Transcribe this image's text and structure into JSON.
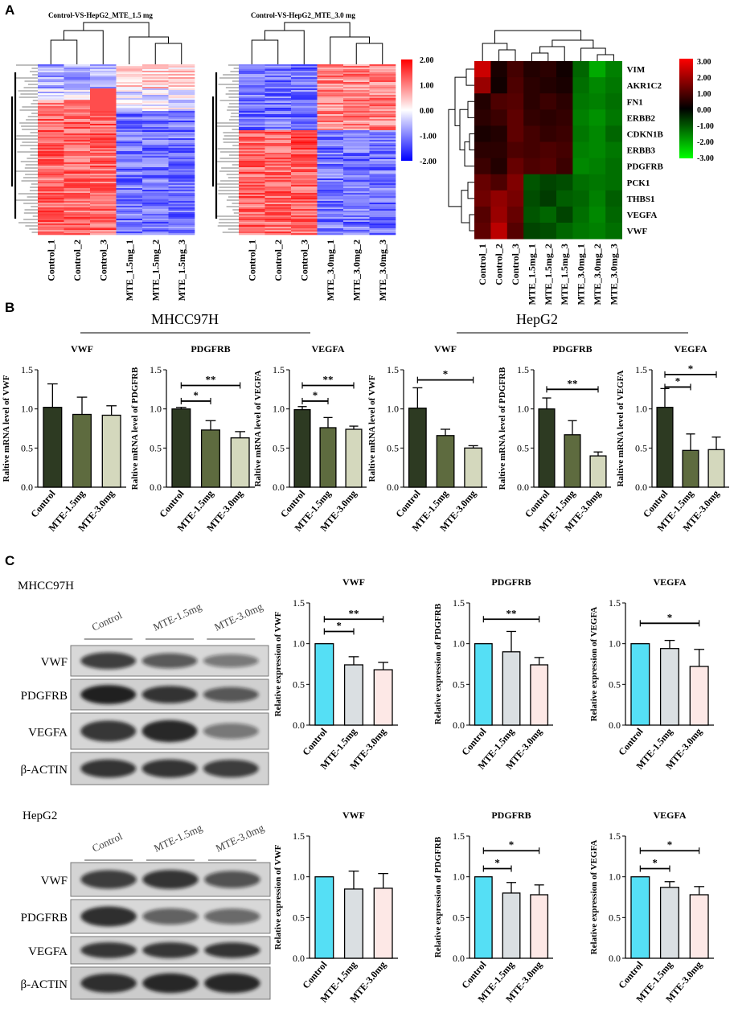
{
  "panels": {
    "a": "A",
    "b": "B",
    "c": "C"
  },
  "heatmaps": [
    {
      "title": "Control-VS-HepG2_MTE_1.5 mg",
      "columns": [
        "Control_1",
        "Control_2",
        "Control_3",
        "MTE_1.5mg_1",
        "MTE_1.5mg_2",
        "MTE_1.5mg_3"
      ]
    },
    {
      "title": "Control-VS-HepG2_MTE_3.0 mg",
      "columns": [
        "Control_1",
        "Control_2",
        "Control_3",
        "MTE_3.0mg_1",
        "MTE_3.0mg_2",
        "MTE_3.0mg_3"
      ]
    }
  ],
  "colorbar1": {
    "ticks": [
      "2.00",
      "1.00",
      "0.00",
      "-1.00",
      "-2.00"
    ],
    "colors": {
      "high": "#ff0000",
      "mid": "#ffffff",
      "low": "#0000ff"
    }
  },
  "gene_heatmap": {
    "genes": [
      "VIM",
      "AKR1C2",
      "FN1",
      "ERBB2",
      "CDKN1B",
      "ERBB3",
      "PDGFRB",
      "PCK1",
      "THBS1",
      "VEGFA",
      "VWF"
    ],
    "columns": [
      "Control_1",
      "Control_2",
      "Control_3",
      "MTE_1.5mg_1",
      "MTE_1.5mg_2",
      "MTE_1.5mg_3",
      "MTE_3.0mg_1",
      "MTE_3.0mg_2",
      "MTE_3.0mg_3"
    ],
    "values": [
      [
        2.4,
        0.3,
        0.8,
        0.4,
        0.5,
        0.2,
        -1.2,
        -2.0,
        -1.5
      ],
      [
        1.8,
        0.2,
        0.9,
        0.5,
        0.4,
        0.3,
        -1.3,
        -1.6,
        -1.4
      ],
      [
        0.4,
        0.9,
        1.0,
        0.5,
        0.7,
        0.5,
        -1.4,
        -1.5,
        -1.3
      ],
      [
        0.5,
        0.7,
        1.1,
        0.6,
        0.5,
        0.6,
        -1.5,
        -1.7,
        -1.4
      ],
      [
        0.3,
        0.4,
        1.1,
        0.8,
        0.6,
        0.7,
        -1.4,
        -1.6,
        -1.2
      ],
      [
        0.5,
        0.5,
        0.9,
        0.8,
        0.9,
        0.8,
        -1.5,
        -1.6,
        -1.4
      ],
      [
        0.7,
        0.4,
        1.2,
        0.9,
        1.0,
        0.7,
        -1.6,
        -1.5,
        -1.3
      ],
      [
        1.2,
        0.9,
        1.5,
        -1.0,
        -0.8,
        -0.9,
        -1.3,
        -1.4,
        -1.3
      ],
      [
        1.3,
        1.7,
        1.4,
        -0.9,
        -0.7,
        -1.1,
        -1.2,
        -1.5,
        -1.1
      ],
      [
        1.0,
        1.8,
        1.2,
        -1.0,
        -1.2,
        -0.8,
        -1.3,
        -1.6,
        -1.2
      ],
      [
        1.1,
        2.2,
        1.0,
        -0.8,
        -0.9,
        -1.2,
        -1.4,
        -1.5,
        -1.3
      ]
    ]
  },
  "colorbar2": {
    "ticks": [
      "3.00",
      "2.00",
      "1.00",
      "0.00",
      "-1.00",
      "-2.00",
      "-3.00"
    ],
    "colors": {
      "high": "#ff0000",
      "mid": "#000000",
      "low": "#00ff00"
    }
  },
  "section_b": {
    "group1": "MHCC97H",
    "group2": "HepG2"
  },
  "section_c": {
    "blots": [
      {
        "cell": "MHCC97H",
        "lanes": [
          "Control",
          "MTE-1.5mg",
          "MTE-3.0mg"
        ],
        "proteins": [
          "VWF",
          "PDGFRB",
          "VEGFA",
          "β-ACTIN"
        ]
      },
      {
        "cell": "HepG2",
        "lanes": [
          "Control",
          "MTE-1.5mg",
          "MTE-3.0mg"
        ],
        "proteins": [
          "VWF",
          "PDGFRB",
          "VEGFA",
          "β-ACTIN"
        ]
      }
    ]
  },
  "chart_data": [
    {
      "type": "bar",
      "panel": "B",
      "cell": "MHCC97H",
      "title": "VWF",
      "ylabel": "Raltive mRNA level of VWF",
      "categories": [
        "Control",
        "MTE-1.5mg",
        "MTE-3.0mg"
      ],
      "values": [
        1.02,
        0.93,
        0.92
      ],
      "errors": [
        0.3,
        0.22,
        0.12
      ],
      "ylim": [
        0,
        1.5
      ],
      "yticks": [
        "0.0",
        "0.5",
        "1.0",
        "1.5"
      ],
      "sig": [],
      "colors": [
        "#2d3a22",
        "#5e6b3f",
        "#d4d8bd"
      ]
    },
    {
      "type": "bar",
      "panel": "B",
      "cell": "MHCC97H",
      "title": "PDGFRB",
      "ylabel": "Raltive mRNA level of PDGFRB",
      "categories": [
        "Control",
        "MTE-1.5mg",
        "MTE-3.0mg"
      ],
      "values": [
        1.0,
        0.73,
        0.63
      ],
      "errors": [
        0.02,
        0.12,
        0.08
      ],
      "ylim": [
        0,
        1.5
      ],
      "yticks": [
        "0.0",
        "0.5",
        "1.0",
        "1.5"
      ],
      "sig": [
        {
          "from": 0,
          "to": 1,
          "label": "*",
          "at": 1.1
        },
        {
          "from": 0,
          "to": 2,
          "label": "**",
          "at": 1.3
        }
      ],
      "colors": [
        "#2d3a22",
        "#5e6b3f",
        "#d4d8bd"
      ]
    },
    {
      "type": "bar",
      "panel": "B",
      "cell": "MHCC97H",
      "title": "VEGFA",
      "ylabel": "Raltive mRNA level of VEGFA",
      "categories": [
        "Control",
        "MTE-1.5mg",
        "MTE-3.0mg"
      ],
      "values": [
        0.99,
        0.76,
        0.74
      ],
      "errors": [
        0.04,
        0.13,
        0.04
      ],
      "ylim": [
        0,
        1.5
      ],
      "yticks": [
        "0.0",
        "0.5",
        "1.0",
        "1.5"
      ],
      "sig": [
        {
          "from": 0,
          "to": 1,
          "label": "*",
          "at": 1.1
        },
        {
          "from": 0,
          "to": 2,
          "label": "**",
          "at": 1.3
        }
      ],
      "colors": [
        "#2d3a22",
        "#5e6b3f",
        "#d4d8bd"
      ]
    },
    {
      "type": "bar",
      "panel": "B",
      "cell": "HepG2",
      "title": "VWF",
      "ylabel": "Raltive mRNA level of VWF",
      "categories": [
        "Control",
        "MTE-1.5mg",
        "MTE-3.0mg"
      ],
      "values": [
        1.01,
        0.66,
        0.5
      ],
      "errors": [
        0.26,
        0.08,
        0.03
      ],
      "ylim": [
        0,
        1.5
      ],
      "yticks": [
        "0.0",
        "0.5",
        "1.0",
        "1.5"
      ],
      "sig": [
        {
          "from": 0,
          "to": 2,
          "label": "*",
          "at": 1.37
        }
      ],
      "colors": [
        "#2d3a22",
        "#5e6b3f",
        "#d4d8bd"
      ]
    },
    {
      "type": "bar",
      "panel": "B",
      "cell": "HepG2",
      "title": "PDGFRB",
      "ylabel": "Raltive mRNA level of PDGFRB",
      "categories": [
        "Control",
        "MTE-1.5mg",
        "MTE-3.0mg"
      ],
      "values": [
        1.0,
        0.67,
        0.4
      ],
      "errors": [
        0.14,
        0.18,
        0.05
      ],
      "ylim": [
        0,
        1.5
      ],
      "yticks": [
        "0.0",
        "0.5",
        "1.0",
        "1.5"
      ],
      "sig": [
        {
          "from": 0,
          "to": 2,
          "label": "**",
          "at": 1.25
        }
      ],
      "colors": [
        "#2d3a22",
        "#5e6b3f",
        "#d4d8bd"
      ]
    },
    {
      "type": "bar",
      "panel": "B",
      "cell": "HepG2",
      "title": "VEGFA",
      "ylabel": "Raltive mRNA level of VEGFA",
      "categories": [
        "Control",
        "MTE-1.5mg",
        "MTE-3.0mg"
      ],
      "values": [
        1.02,
        0.47,
        0.48
      ],
      "errors": [
        0.24,
        0.21,
        0.16
      ],
      "ylim": [
        0,
        1.5
      ],
      "yticks": [
        "0.0",
        "0.5",
        "1.0",
        "1.5"
      ],
      "sig": [
        {
          "from": 0,
          "to": 1,
          "label": "*",
          "at": 1.28
        },
        {
          "from": 0,
          "to": 2,
          "label": "*",
          "at": 1.44
        }
      ],
      "colors": [
        "#2d3a22",
        "#5e6b3f",
        "#d4d8bd"
      ]
    },
    {
      "type": "bar",
      "panel": "C",
      "cell": "MHCC97H",
      "title": "VWF",
      "ylabel": "Relative expression of VWF",
      "categories": [
        "Control",
        "MTE-1.5mg",
        "MTE-3.0mg"
      ],
      "values": [
        1.0,
        0.74,
        0.68
      ],
      "errors": [
        0,
        0.1,
        0.09
      ],
      "ylim": [
        0,
        1.5
      ],
      "yticks": [
        "0.0",
        "0.5",
        "1.0",
        "1.5"
      ],
      "sig": [
        {
          "from": 0,
          "to": 1,
          "label": "*",
          "at": 1.15
        },
        {
          "from": 0,
          "to": 2,
          "label": "**",
          "at": 1.3
        }
      ],
      "colors": [
        "#55dff5",
        "#dadfe2",
        "#fde8e6"
      ]
    },
    {
      "type": "bar",
      "panel": "C",
      "cell": "MHCC97H",
      "title": "PDGFRB",
      "ylabel": "Relative expression of PDGFRB",
      "categories": [
        "Control",
        "MTE-1.5mg",
        "MTE-3.0mg"
      ],
      "values": [
        1.0,
        0.9,
        0.74
      ],
      "errors": [
        0,
        0.25,
        0.09
      ],
      "ylim": [
        0,
        1.5
      ],
      "yticks": [
        "0.0",
        "0.5",
        "1.0",
        "1.5"
      ],
      "sig": [
        {
          "from": 0,
          "to": 2,
          "label": "**",
          "at": 1.3
        }
      ],
      "colors": [
        "#55dff5",
        "#dadfe2",
        "#fde8e6"
      ]
    },
    {
      "type": "bar",
      "panel": "C",
      "cell": "MHCC97H",
      "title": "VEGFA",
      "ylabel": "Relative expression of VEGFA",
      "categories": [
        "Control",
        "MTE-1.5mg",
        "MTE-3.0mg"
      ],
      "values": [
        1.0,
        0.94,
        0.72
      ],
      "errors": [
        0,
        0.1,
        0.21
      ],
      "ylim": [
        0,
        1.5
      ],
      "yticks": [
        "0.0",
        "0.5",
        "1.0",
        "1.5"
      ],
      "sig": [
        {
          "from": 0,
          "to": 2,
          "label": "*",
          "at": 1.25
        }
      ],
      "colors": [
        "#55dff5",
        "#dadfe2",
        "#fde8e6"
      ]
    },
    {
      "type": "bar",
      "panel": "C",
      "cell": "HepG2",
      "title": "VWF",
      "ylabel": "Relative expression of VWF",
      "categories": [
        "Control",
        "MTE-1.5mg",
        "MTE-3.0mg"
      ],
      "values": [
        1.0,
        0.85,
        0.86
      ],
      "errors": [
        0,
        0.22,
        0.18
      ],
      "ylim": [
        0,
        1.5
      ],
      "yticks": [
        "0.0",
        "0.5",
        "1.0",
        "1.5"
      ],
      "sig": [],
      "colors": [
        "#55dff5",
        "#dadfe2",
        "#fde8e6"
      ]
    },
    {
      "type": "bar",
      "panel": "C",
      "cell": "HepG2",
      "title": "PDGFRB",
      "ylabel": "Relative expression of PDGFRB",
      "categories": [
        "Control",
        "MTE-1.5mg",
        "MTE-3.0mg"
      ],
      "values": [
        1.0,
        0.8,
        0.78
      ],
      "errors": [
        0,
        0.13,
        0.12
      ],
      "ylim": [
        0,
        1.5
      ],
      "yticks": [
        "0.0",
        "0.5",
        "1.0",
        "1.5"
      ],
      "sig": [
        {
          "from": 0,
          "to": 1,
          "label": "*",
          "at": 1.1
        },
        {
          "from": 0,
          "to": 2,
          "label": "*",
          "at": 1.32
        }
      ],
      "colors": [
        "#55dff5",
        "#dadfe2",
        "#fde8e6"
      ]
    },
    {
      "type": "bar",
      "panel": "C",
      "cell": "HepG2",
      "title": "VEGFA",
      "ylabel": "Relative expression of VEGFA",
      "categories": [
        "Control",
        "MTE-1.5mg",
        "MTE-3.0mg"
      ],
      "values": [
        1.0,
        0.87,
        0.78
      ],
      "errors": [
        0,
        0.07,
        0.1
      ],
      "ylim": [
        0,
        1.5
      ],
      "yticks": [
        "0.0",
        "0.5",
        "1.0",
        "1.5"
      ],
      "sig": [
        {
          "from": 0,
          "to": 1,
          "label": "*",
          "at": 1.1
        },
        {
          "from": 0,
          "to": 2,
          "label": "*",
          "at": 1.32
        }
      ],
      "colors": [
        "#55dff5",
        "#dadfe2",
        "#fde8e6"
      ]
    }
  ]
}
